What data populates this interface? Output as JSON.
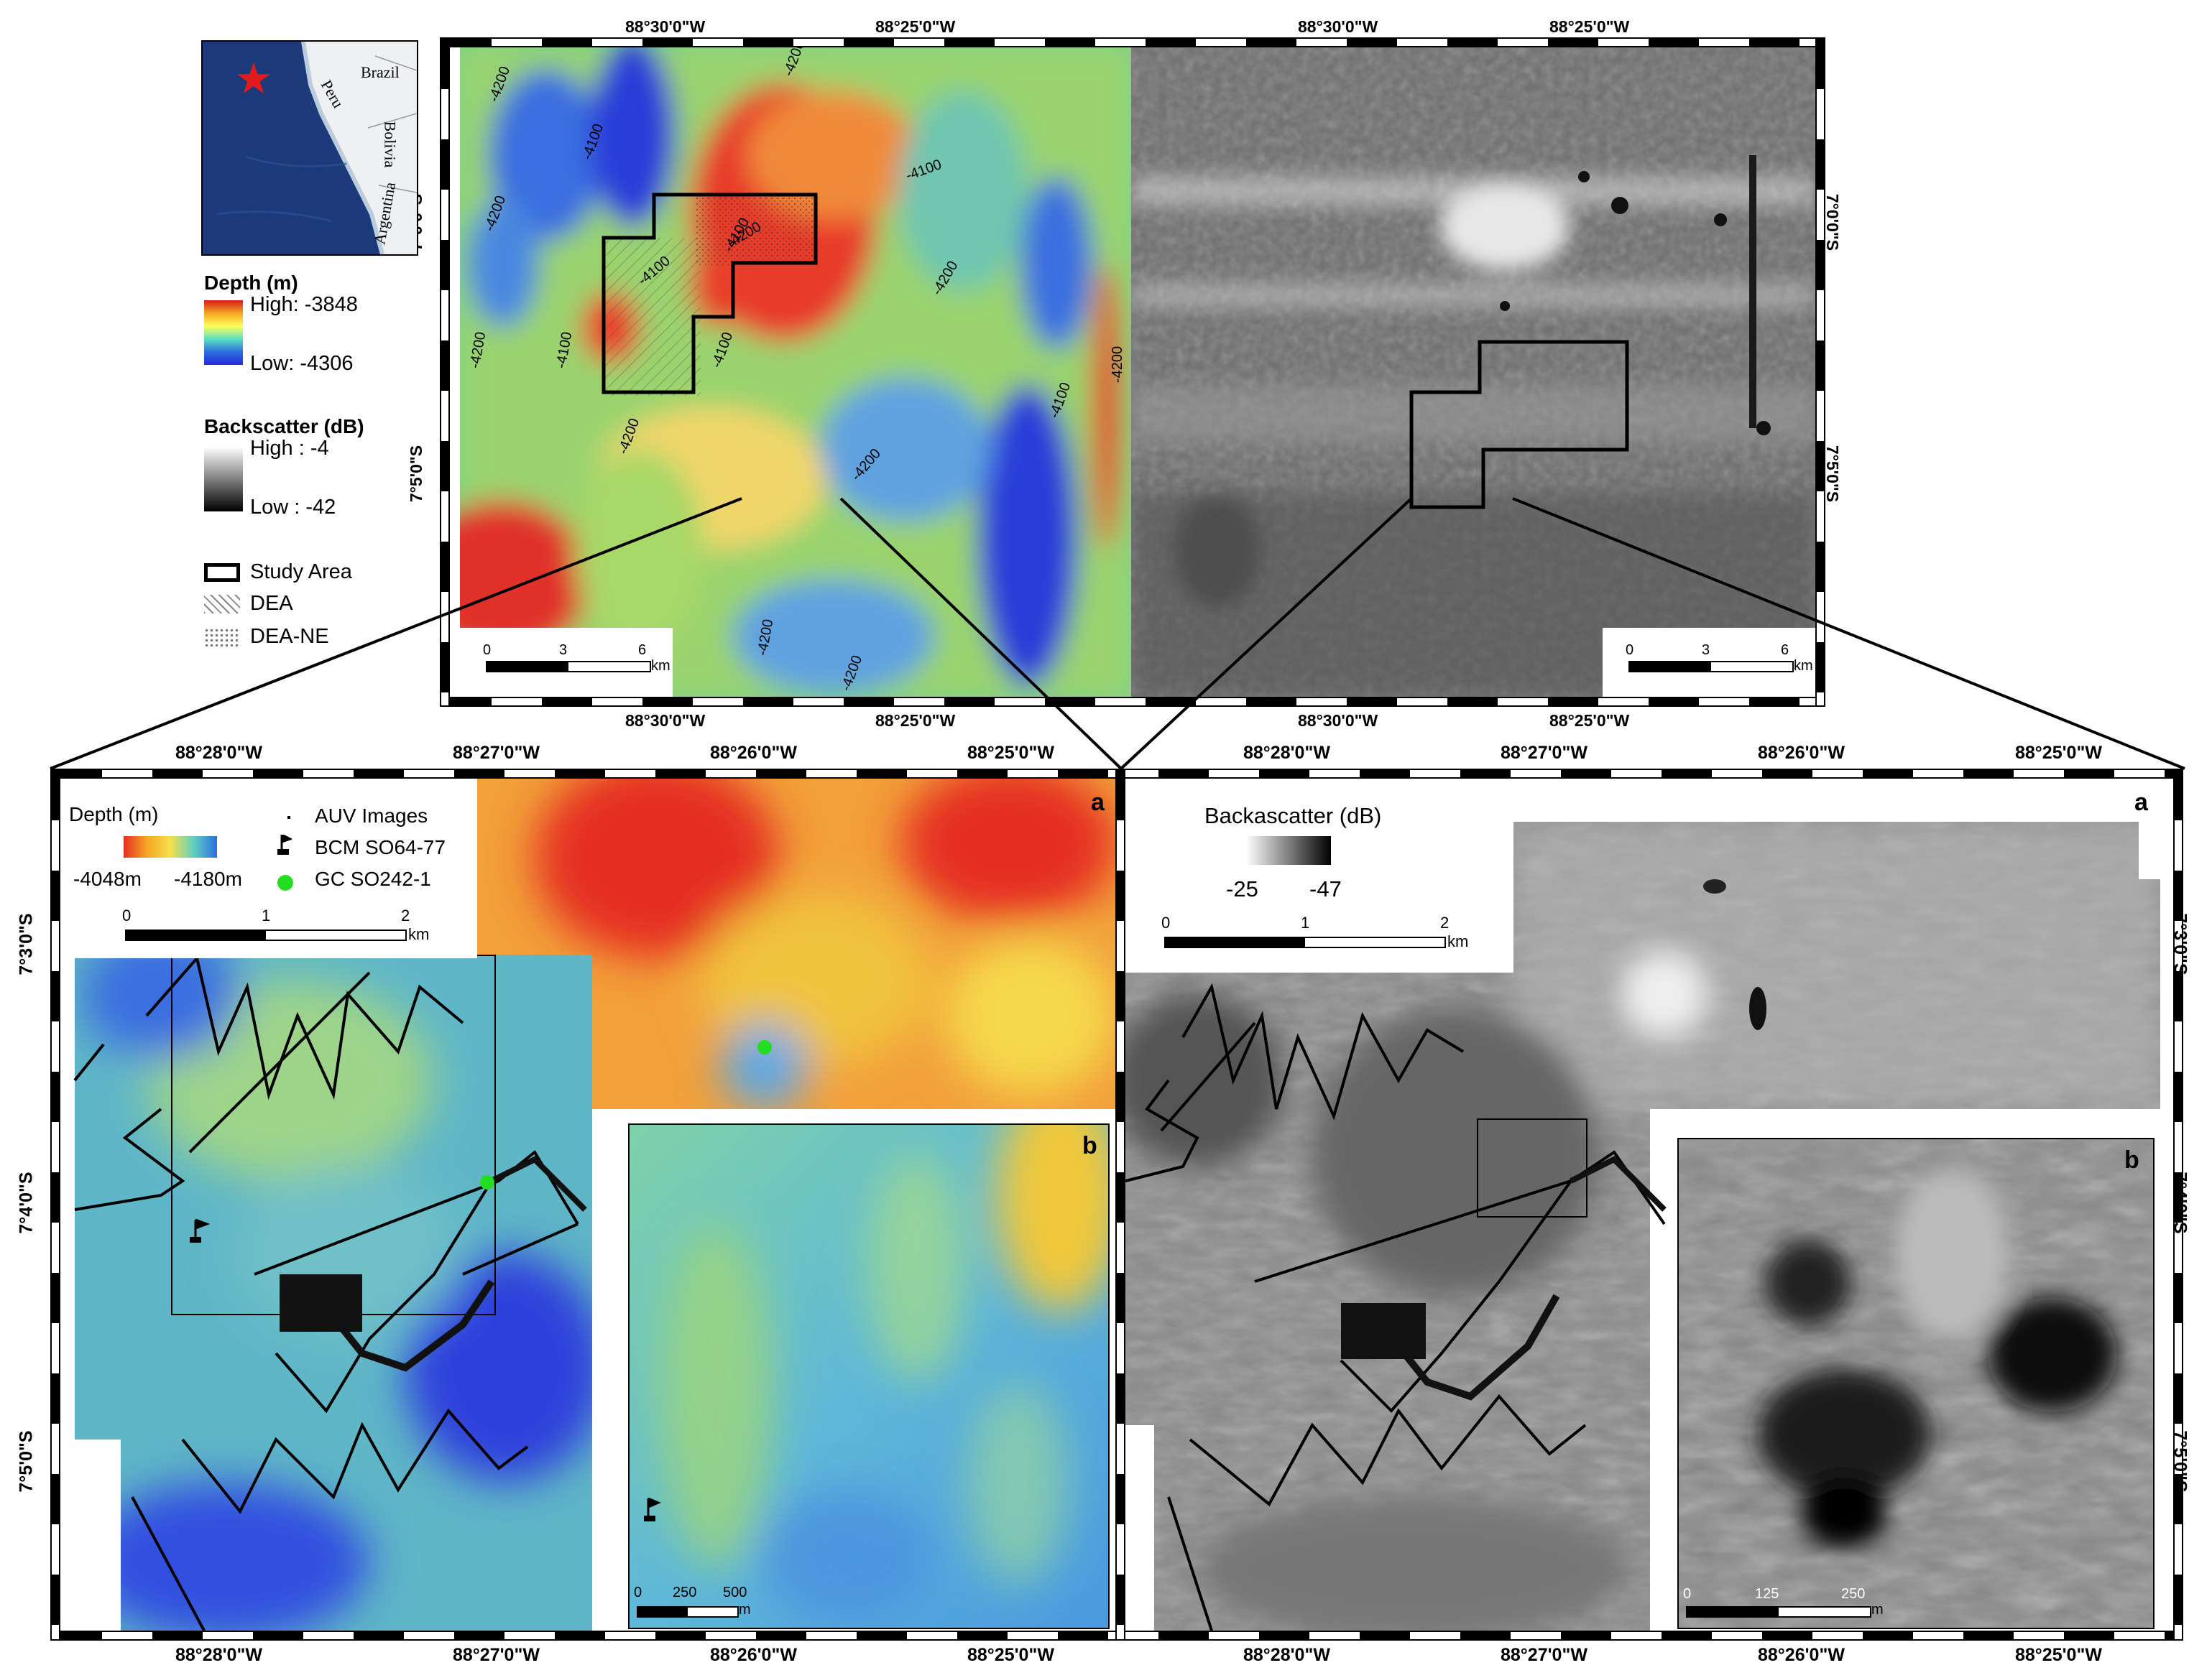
{
  "top": {
    "lon_labels_top_left": [
      "88°30'0\"W",
      "88°25'0\"W"
    ],
    "lon_labels_top_right": [
      "88°30'0\"W",
      "88°25'0\"W"
    ],
    "lon_labels_bottom_left": [
      "88°30'0\"W",
      "88°25'0\"W"
    ],
    "lon_labels_bottom_right": [
      "88°30'0\"W",
      "88°25'0\"W"
    ],
    "lat_labels_left": [
      "7°0'0\"S",
      "7°5'0\"S"
    ],
    "lat_labels_right": [
      "7°0'0\"S",
      "7°5'0\"S"
    ],
    "contour_labels": [
      "-4200",
      "-4100",
      "-4200",
      "-4200",
      "-4100",
      "-4100",
      "-4100",
      "-4200",
      "-4100",
      "-4200",
      "-4200",
      "-4200",
      "-4200",
      "-4100",
      "-4100",
      "-4200",
      "-4200",
      "-4200"
    ],
    "scalebar": {
      "ticks": [
        "0",
        "3",
        "6"
      ],
      "unit": "km"
    }
  },
  "inset_map": {
    "country_labels": [
      "Brazil",
      "Peru",
      "Bolivia",
      "Argentina"
    ],
    "marker": "red-star"
  },
  "legend": {
    "depth_title": "Depth (m)",
    "depth_high": "High: -3848",
    "depth_low": "Low: -4306",
    "backscatter_title": "Backscatter (dB)",
    "backscatter_high": "High : -4",
    "backscatter_low": "Low : -42",
    "study_area": "Study Area",
    "dea": "DEA",
    "dea_ne": "DEA-NE"
  },
  "bottom": {
    "lon_labels": [
      "88°28'0\"W",
      "88°27'0\"W",
      "88°26'0\"W",
      "88°25'0\"W"
    ],
    "lat_labels": [
      "7°3'0\"S",
      "7°4'0\"S",
      "7°5'0\"S"
    ],
    "left": {
      "depth_title": "Depth (m)",
      "depth_min": "-4048m",
      "depth_max": "-4180m",
      "auv_images": "AUV Images",
      "bcm": "BCM SO64-77",
      "gc": "GC SO242-1",
      "scalebar": {
        "ticks": [
          "0",
          "1",
          "2"
        ],
        "unit": "km"
      },
      "panel_a": "a",
      "panel_b": "b",
      "inset_scalebar": {
        "ticks": [
          "0",
          "250",
          "500"
        ],
        "unit": "m"
      }
    },
    "right": {
      "backscatter_title": "Backascatter (dB)",
      "bs_min": "-25",
      "bs_max": "-47",
      "scalebar": {
        "ticks": [
          "0",
          "1",
          "2"
        ],
        "unit": "km"
      },
      "panel_a": "a",
      "panel_b": "b",
      "inset_scalebar": {
        "ticks": [
          "0",
          "125",
          "250"
        ],
        "unit": "m"
      }
    }
  },
  "colors": {
    "depth_high": "#d7191c",
    "depth_mid": "#ffff80",
    "depth_low": "#2b2bdd",
    "gc_marker": "#22dd22",
    "star": "#e31a1c",
    "ocean": "#1c3a7a"
  }
}
